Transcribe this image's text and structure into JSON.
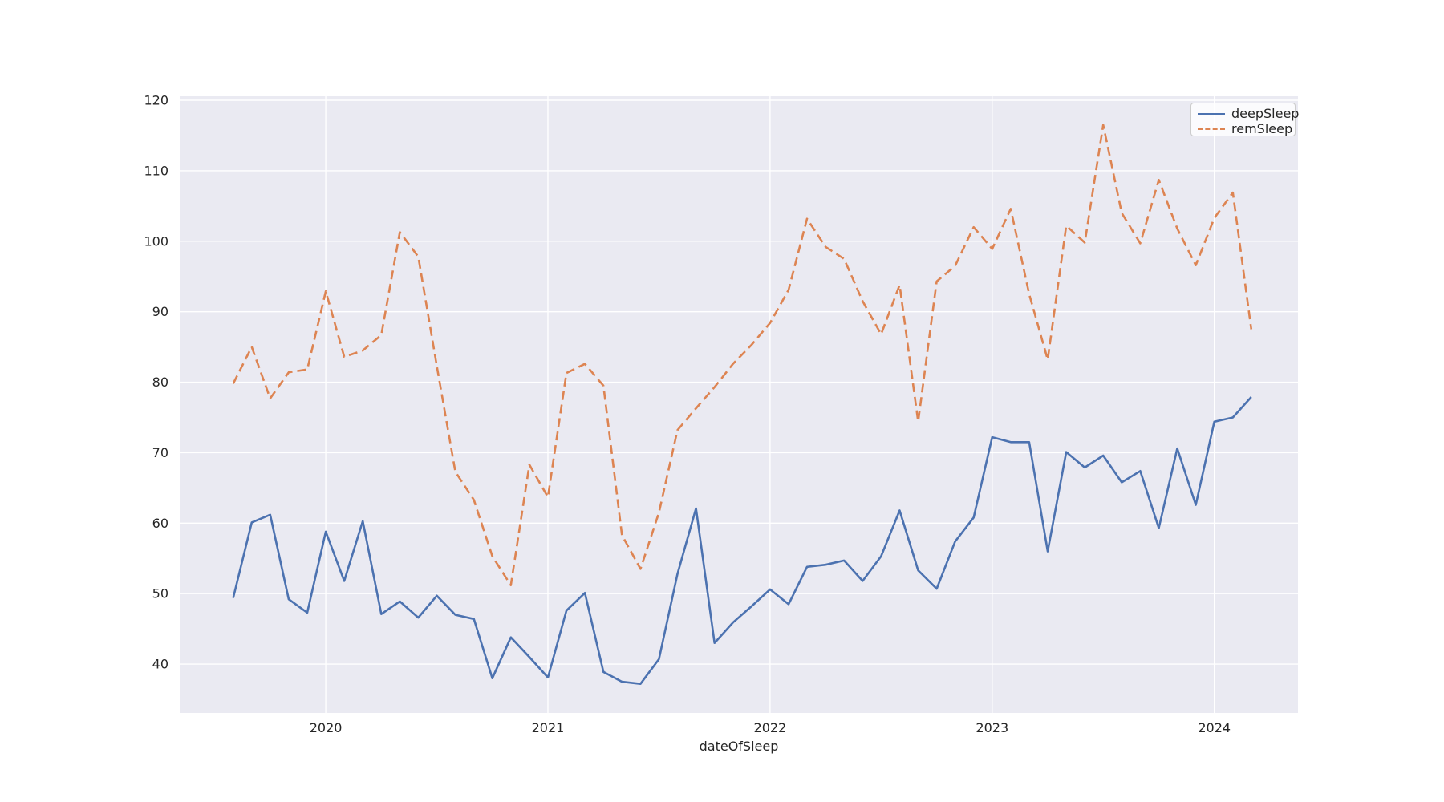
{
  "figure": {
    "background_color": "#ffffff",
    "plot_background_color": "#eaeaf2",
    "grid_color": "#ffffff",
    "text_color": "#262626"
  },
  "chart_data": {
    "type": "line",
    "title": "",
    "xlabel": "dateOfSleep",
    "ylabel": "",
    "grid": true,
    "legend_position": "upper right",
    "ylim": [
      33.07,
      120.57
    ],
    "xlim_month_index": [
      -2.89,
      57.52
    ],
    "yticks": [
      40,
      50,
      60,
      70,
      80,
      90,
      100,
      110,
      120
    ],
    "xticks": [
      {
        "label": "2020",
        "month_index": 5
      },
      {
        "label": "2021",
        "month_index": 17
      },
      {
        "label": "2022",
        "month_index": 29
      },
      {
        "label": "2023",
        "month_index": 41
      },
      {
        "label": "2024",
        "month_index": 53
      }
    ],
    "x": [
      "2019-08",
      "2019-09",
      "2019-10",
      "2019-11",
      "2019-12",
      "2020-01",
      "2020-02",
      "2020-03",
      "2020-04",
      "2020-05",
      "2020-06",
      "2020-07",
      "2020-08",
      "2020-09",
      "2020-10",
      "2020-11",
      "2020-12",
      "2021-01",
      "2021-02",
      "2021-03",
      "2021-04",
      "2021-05",
      "2021-06",
      "2021-07",
      "2021-08",
      "2021-09",
      "2021-10",
      "2021-11",
      "2021-12",
      "2022-01",
      "2022-02",
      "2022-03",
      "2022-04",
      "2022-05",
      "2022-06",
      "2022-07",
      "2022-08",
      "2022-09",
      "2022-10",
      "2022-11",
      "2022-12",
      "2023-01",
      "2023-02",
      "2023-03",
      "2023-04",
      "2023-05",
      "2023-06",
      "2023-07",
      "2023-08",
      "2023-09",
      "2023-10",
      "2023-11",
      "2023-12",
      "2024-01",
      "2024-02",
      "2024-03"
    ],
    "series": [
      {
        "name": "deepSleep",
        "color": "#4c72b0",
        "line_style": "solid",
        "values": [
          49.4,
          60.1,
          61.2,
          49.2,
          47.3,
          58.8,
          51.8,
          60.3,
          47.1,
          48.9,
          46.6,
          49.7,
          47.0,
          46.4,
          38.0,
          43.8,
          41.0,
          38.1,
          47.6,
          50.1,
          38.9,
          37.5,
          37.2,
          40.7,
          52.8,
          62.1,
          43.0,
          45.9,
          48.2,
          50.6,
          48.5,
          53.8,
          54.1,
          54.7,
          51.8,
          55.3,
          61.8,
          53.3,
          50.7,
          57.4,
          60.8,
          72.2,
          71.5,
          71.5,
          56.0,
          70.1,
          67.9,
          69.6,
          65.8,
          67.4,
          59.3,
          70.6,
          62.6,
          74.4,
          75.0,
          77.9
        ]
      },
      {
        "name": "remSleep",
        "color": "#dd8452",
        "line_style": "dashed",
        "values": [
          79.8,
          85.0,
          77.7,
          81.4,
          81.8,
          92.9,
          83.6,
          84.5,
          86.7,
          101.3,
          97.8,
          82.3,
          67.3,
          63.3,
          55.3,
          51.2,
          68.3,
          63.7,
          81.3,
          82.6,
          79.5,
          58.3,
          53.5,
          61.5,
          73.2,
          76.3,
          79.3,
          82.6,
          85.3,
          88.4,
          93.1,
          103.2,
          99.2,
          97.5,
          91.5,
          86.8,
          93.8,
          74.4,
          94.3,
          96.5,
          102.0,
          98.9,
          104.6,
          92.5,
          83.2,
          102.2,
          99.8,
          116.5,
          104.0,
          99.7,
          108.7,
          101.8,
          96.6,
          103.3,
          106.9,
          87.5
        ]
      }
    ]
  }
}
